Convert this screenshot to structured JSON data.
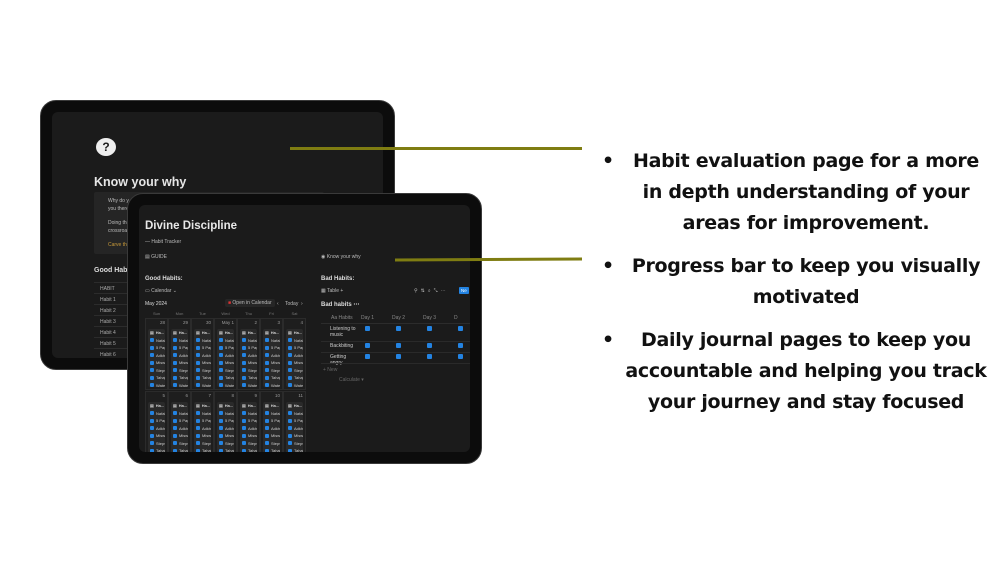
{
  "back_tablet": {
    "page_title": "Know your why",
    "callout_line1": "Why do y",
    "callout_line2": "you there",
    "callout_line3": "Doing thi",
    "callout_line4": "crossroa",
    "callout_link": "Carve the",
    "section_title": "Good Habi",
    "table_rows": [
      "HABIT",
      "Habit 1",
      "Habit 2",
      "Habit 3",
      "Habit 4",
      "Habit 5",
      "Habit 6"
    ]
  },
  "front_tablet": {
    "page_title": "Divine Discipline",
    "subtitle": "— Habit Tracker",
    "guide_link": "GUIDE",
    "why_link": "Know your why",
    "good_habits_heading": "Good Habits:",
    "calendar_view": "Calendar",
    "month": "May 2024",
    "open_in_calendar": "Open in Calendar",
    "today": "Today",
    "weekdays": [
      "Sun",
      "Mon",
      "Tue",
      "Wed",
      "Thu",
      "Fri",
      "Sat"
    ],
    "week1_dates": [
      "28",
      "29",
      "30",
      "May 1",
      "2",
      "3",
      "4"
    ],
    "week2_dates": [
      "5",
      "6",
      "7",
      "8",
      "9",
      "10",
      "11"
    ],
    "card_title": "Ha...",
    "card_items": [
      "Nafal",
      "5 Page",
      "Adkha",
      "Miswa",
      "Steps",
      "Tahajj",
      "Water"
    ],
    "bad_habits_heading": "Bad Habits:",
    "table_view": "Table",
    "new_button": "Ne",
    "bad_habits_db_title": "Bad habits",
    "columns": [
      "Aa Habits",
      "Day 1",
      "Day 2",
      "Day 3",
      "D"
    ],
    "rows": [
      {
        "habit": "Listening to music",
        "checks": [
          true,
          true,
          true,
          true
        ]
      },
      {
        "habit": "Backbiting",
        "checks": [
          true,
          true,
          true,
          true
        ]
      },
      {
        "habit": "Getting angry",
        "checks": [
          true,
          true,
          true,
          true
        ]
      }
    ],
    "add_new": "+ New",
    "calculate": "Calculate ▾"
  },
  "bullets": [
    "Habit evaluation page for a more in depth understanding of your areas for improvement.",
    "Progress bar to keep you visually motivated",
    "Daily journal pages to keep you accountable and helping you track your  journey and stay focused"
  ],
  "colors": {
    "connector_line": "#7f7d12",
    "checkbox": "#2383e2",
    "progress": "#3a9a5a",
    "screen_bg": "#1b1b1b"
  }
}
